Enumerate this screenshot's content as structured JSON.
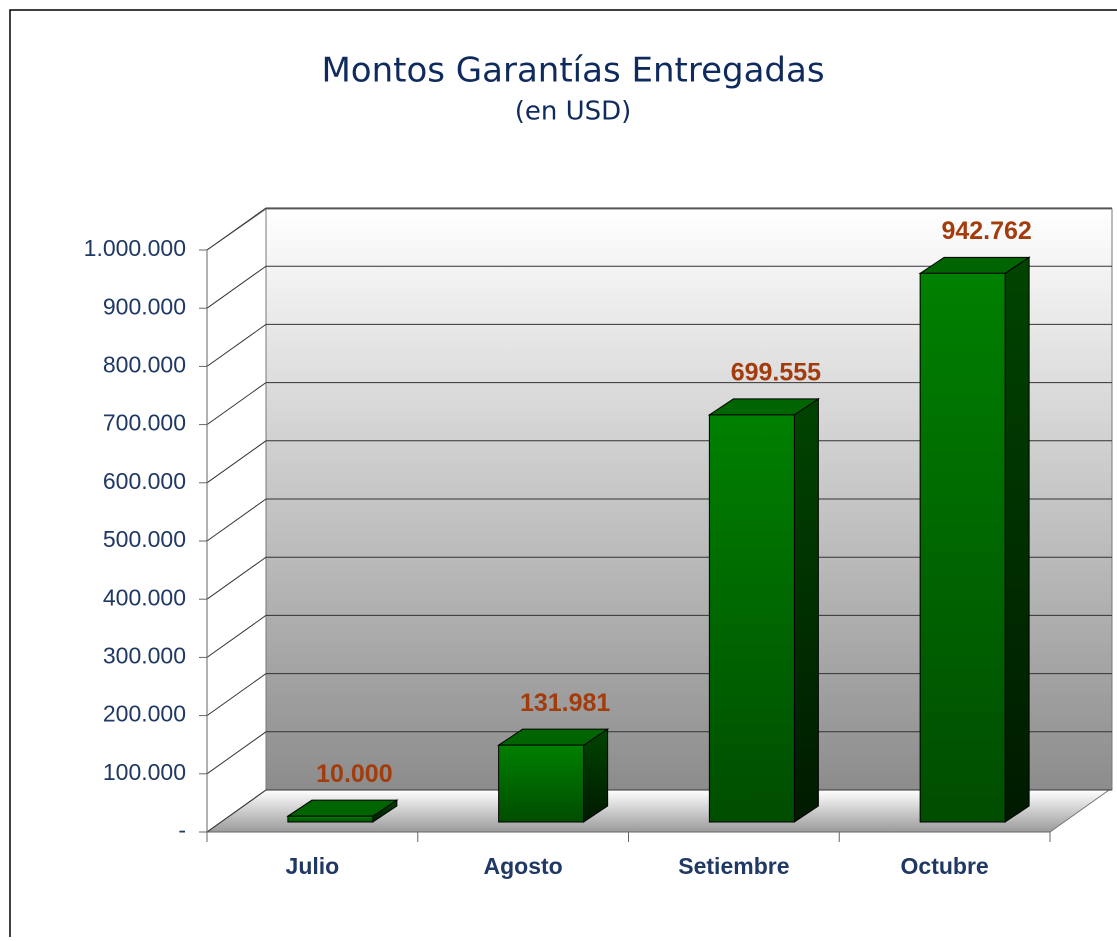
{
  "chart_data": {
    "type": "bar3d",
    "title": "Montos Garantías Entregadas",
    "subtitle": "(en USD)",
    "categories": [
      "Julio",
      "Agosto",
      "Setiembre",
      "Octubre"
    ],
    "values": [
      10000,
      131981,
      699555,
      942762
    ],
    "value_labels": [
      "10.000",
      "131.981",
      "699.555",
      "942.762"
    ],
    "color": "#008000",
    "ylim": [
      0,
      1000000
    ],
    "yticks": [
      {
        "value": 0,
        "label": "-"
      },
      {
        "value": 100000,
        "label": "100.000"
      },
      {
        "value": 200000,
        "label": "200.000"
      },
      {
        "value": 300000,
        "label": "300.000"
      },
      {
        "value": 400000,
        "label": "400.000"
      },
      {
        "value": 500000,
        "label": "500.000"
      },
      {
        "value": 600000,
        "label": "600.000"
      },
      {
        "value": 700000,
        "label": "700.000"
      },
      {
        "value": 800000,
        "label": "800.000"
      },
      {
        "value": 900000,
        "label": "900.000"
      },
      {
        "value": 1000000,
        "label": "1.000.000"
      }
    ],
    "grid": true
  }
}
